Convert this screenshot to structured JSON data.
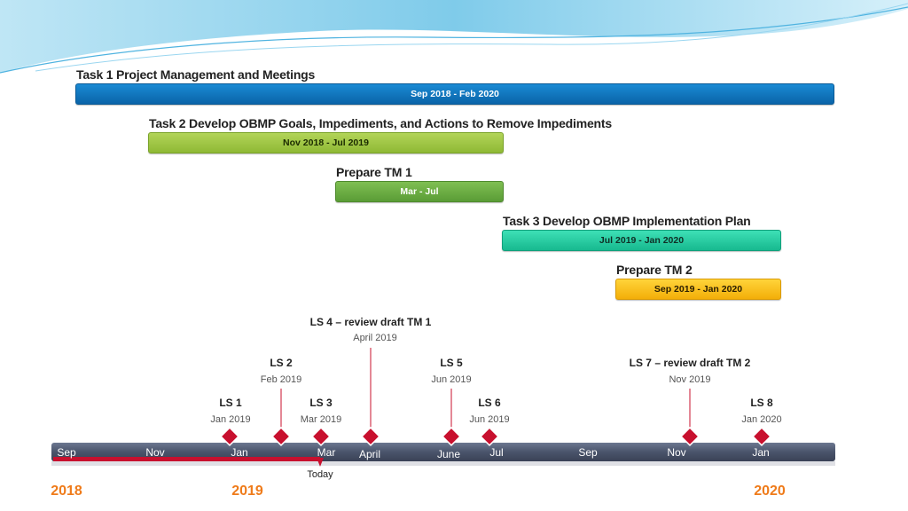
{
  "tasks": [
    {
      "title": "Task 1 Project Management and Meetings",
      "range": "Sep 2018 - Feb 2020",
      "color": "#0a64a8"
    },
    {
      "title": "Task 2 Develop OBMP Goals, Impediments, and Actions to Remove Impediments",
      "range": "Nov 2018 - Jul 2019",
      "color": "#8fb935"
    },
    {
      "title": "Prepare TM 1",
      "range": "Mar - Jul",
      "color": "#5a9c36"
    },
    {
      "title": "Task 3 Develop OBMP Implementation Plan",
      "range": "Jul 2019 - Jan 2020",
      "color": "#17b98f"
    },
    {
      "title": "Prepare TM 2",
      "range": "Sep 2019 - Jan 2020",
      "color": "#f3ae08"
    }
  ],
  "milestones": [
    {
      "title": "LS 1",
      "date": "Jan 2019"
    },
    {
      "title": "LS 2",
      "date": "Feb 2019"
    },
    {
      "title": "LS 3",
      "date": "Mar 2019"
    },
    {
      "title": "LS 4 – review draft TM 1",
      "date": "April 2019"
    },
    {
      "title": "LS 5",
      "date": "Jun 2019"
    },
    {
      "title": "LS 6",
      "date": "Jun 2019"
    },
    {
      "title": "LS 7 – review draft TM 2",
      "date": "Nov 2019"
    },
    {
      "title": "LS 8",
      "date": "Jan 2020"
    }
  ],
  "timeline": {
    "months": [
      "Sep",
      "Nov",
      "Jan",
      "Mar",
      "April",
      "June",
      "Jul",
      "Sep",
      "Nov",
      "Jan"
    ],
    "years": [
      "2018",
      "2019",
      "2020"
    ],
    "today_label": "Today",
    "accent_color": "#ef7b1a",
    "milestone_color": "#c8102e"
  }
}
